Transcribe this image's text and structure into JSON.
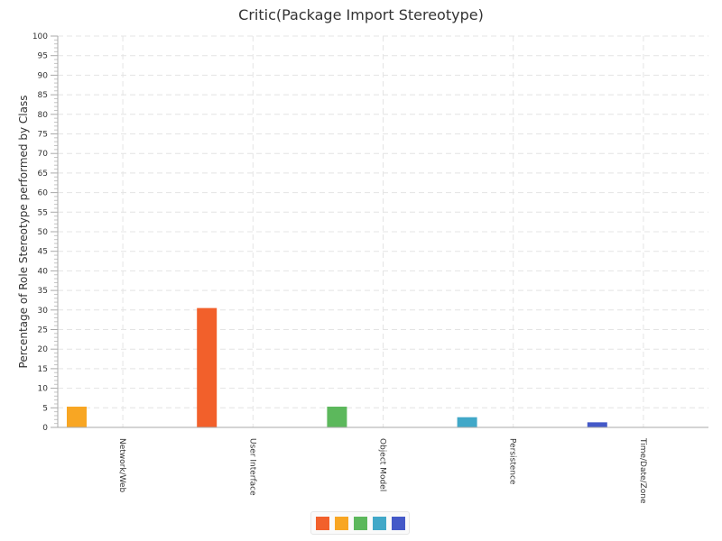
{
  "chart_data": {
    "type": "bar",
    "title": "Critic(Package Import Stereotype)",
    "xlabel": "",
    "ylabel": "Percentage of Role Stereotype performed by Class",
    "ylim": [
      0,
      100
    ],
    "ytick_step": 5,
    "categories": [
      "Network/Web",
      "User Interface",
      "Object Model",
      "Persistence",
      "Time/Date/Zone"
    ],
    "values": [
      5.3,
      30.5,
      5.3,
      2.6,
      1.3
    ],
    "colors": [
      "#f8a623",
      "#f2602b",
      "#5cb85c",
      "#41a8c8",
      "#4459c8"
    ],
    "legend_colors": [
      "#f2602b",
      "#f8a623",
      "#5cb85c",
      "#41a8c8",
      "#4459c8"
    ],
    "grid": true,
    "legend": "bottom-center"
  }
}
